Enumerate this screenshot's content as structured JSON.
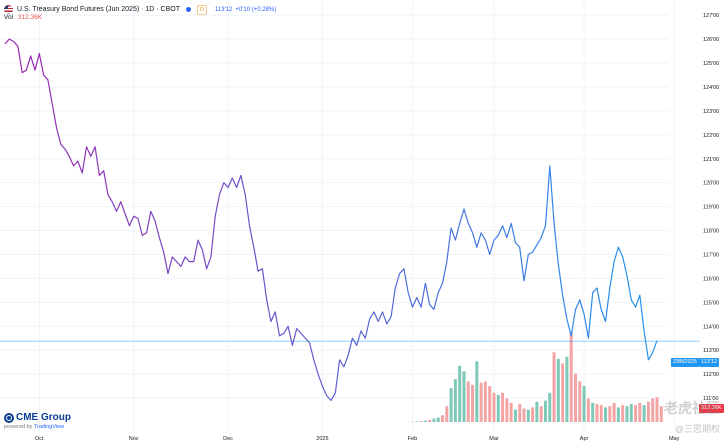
{
  "header": {
    "title": "U.S. Treasury Bond Futures (Jun 2025) · 1D · CBOT",
    "badge": "D",
    "price": "113'12",
    "change": "+0'10 (+0.28%)",
    "dot_color": "#2962ff",
    "badge_color": "#f7931a"
  },
  "volume_indicator": {
    "label": "Vol",
    "value": "312.36K"
  },
  "price_tags": {
    "symbol": "ZBM2025",
    "price": "113'12"
  },
  "volume_tag": "312.36K",
  "logo": {
    "name": "CME Group",
    "powered_prefix": "powered by",
    "powered_brand": "TradingView"
  },
  "watermark": {
    "line1": "老虎社区",
    "line2": "@三思期权"
  },
  "colors": {
    "line_start": "#9c27b0",
    "line_end": "#2196f3",
    "vol_up": "#7ec8b8",
    "vol_down": "#f4a4a4",
    "grid": "#f0f3fa",
    "last_price_line": "#2196f3",
    "axis_text": "#131722"
  },
  "chart_data": {
    "type": "line",
    "title": "U.S. Treasury Bond Futures (Jun 2025) · 1D · CBOT",
    "y_axis_unit": "price in points and 32nds",
    "y_tick_labels": [
      "111'00",
      "112'00",
      "113'00",
      "114'00",
      "115'00",
      "116'00",
      "117'00",
      "118'00",
      "119'00",
      "120'00",
      "121'00",
      "122'00",
      "123'00",
      "124'00",
      "125'00",
      "126'00",
      "127'00"
    ],
    "ylim": [
      110.5,
      127.3
    ],
    "x_tick_labels": [
      "Oct",
      "Nov",
      "Dec",
      "2025",
      "Feb",
      "Mar",
      "Apr",
      "May"
    ],
    "grid": true,
    "last_price": 113.375,
    "series": [
      {
        "values": [
          125.8,
          126.0,
          125.9,
          125.7,
          124.6,
          124.7,
          125.3,
          124.7,
          125.4,
          124.5,
          124.3,
          123.3,
          122.3,
          121.6,
          121.4,
          121.1,
          120.7,
          120.9,
          120.4,
          121.5,
          121.1,
          121.5,
          120.3,
          120.5,
          119.5,
          119.2,
          118.8,
          119.2,
          118.7,
          118.2,
          118.6,
          118.5,
          117.8,
          117.9,
          118.8,
          118.4,
          117.7,
          117.1,
          116.2,
          116.9,
          116.7,
          116.5,
          116.9,
          116.7,
          116.7,
          117.6,
          117.2,
          116.4,
          116.9,
          118.6,
          119.5,
          120.0,
          119.8,
          120.2,
          119.8,
          120.3,
          119.5,
          118.2,
          117.3,
          116.3,
          116.4,
          115.1,
          114.2,
          114.6,
          113.6,
          113.7,
          114.0,
          113.2,
          113.9,
          113.7,
          113.5,
          113.3,
          112.6,
          112.0,
          111.5,
          111.1,
          110.9,
          111.2,
          112.6,
          112.3,
          112.8,
          113.5,
          113.2,
          113.8,
          113.5,
          114.3,
          114.6,
          114.2,
          114.6,
          114.1,
          114.4,
          115.6,
          116.2,
          116.4,
          115.4,
          114.8,
          115.2,
          114.8,
          115.8,
          114.9,
          114.7,
          115.4,
          115.8,
          116.7,
          118.1,
          117.6,
          118.3,
          118.9,
          118.3,
          117.9,
          117.3,
          117.9,
          117.6,
          117.0,
          117.6,
          117.8,
          118.2,
          117.7,
          118.3,
          117.5,
          117.3,
          115.9,
          117.0,
          117.1,
          117.4,
          117.7,
          118.2,
          120.7,
          118.3,
          116.6,
          115.3,
          114.3,
          113.6,
          114.7,
          115.1,
          114.5,
          113.5,
          115.4,
          115.6,
          114.7,
          114.2,
          115.6,
          116.7,
          117.3,
          116.9,
          116.1,
          115.1,
          114.8,
          115.3,
          113.8,
          112.6,
          112.9,
          113.4
        ]
      }
    ],
    "volume_values": [
      0,
      0,
      0,
      0,
      0,
      0,
      0,
      0,
      0,
      0,
      0,
      0,
      0,
      0,
      0,
      0,
      0,
      0,
      0,
      0,
      0,
      0,
      0,
      0,
      0,
      0,
      0,
      0,
      0,
      0,
      0,
      0,
      0,
      0,
      0,
      0,
      0,
      0,
      0,
      0,
      0,
      0,
      0,
      0,
      0,
      0,
      0,
      0,
      0,
      0,
      0,
      0,
      0,
      0,
      0,
      0,
      0,
      0,
      0,
      0,
      0,
      0,
      0,
      0,
      0,
      0,
      0,
      0,
      0,
      0,
      0,
      0,
      0,
      0,
      0,
      0,
      0,
      0,
      0,
      0,
      0,
      0,
      0,
      0,
      0,
      0,
      0,
      0,
      0,
      0,
      0,
      0,
      0,
      0,
      1,
      3,
      5,
      8,
      12,
      20,
      30,
      40,
      60,
      140,
      300,
      380,
      500,
      450,
      360,
      330,
      540,
      350,
      360,
      320,
      260,
      240,
      260,
      210,
      170,
      110,
      160,
      120,
      110,
      130,
      180,
      140,
      190,
      260,
      620,
      560,
      520,
      580,
      800,
      430,
      360,
      320,
      210,
      170,
      160,
      150,
      130,
      140,
      170,
      130,
      150,
      140,
      160,
      150,
      170,
      150,
      180,
      210,
      220,
      140
    ],
    "volume_direction": [
      0,
      0,
      0,
      0,
      0,
      0,
      0,
      0,
      0,
      0,
      0,
      0,
      0,
      0,
      0,
      0,
      0,
      0,
      0,
      0,
      0,
      0,
      0,
      0,
      0,
      0,
      0,
      0,
      0,
      0,
      0,
      0,
      0,
      0,
      0,
      0,
      0,
      0,
      0,
      0,
      0,
      0,
      0,
      0,
      0,
      0,
      0,
      0,
      0,
      0,
      0,
      0,
      0,
      0,
      0,
      0,
      0,
      0,
      0,
      0,
      0,
      0,
      0,
      0,
      0,
      0,
      0,
      0,
      0,
      0,
      0,
      0,
      0,
      0,
      0,
      0,
      0,
      0,
      0,
      0,
      0,
      0,
      0,
      0,
      0,
      0,
      0,
      0,
      0,
      0,
      0,
      0,
      0,
      0,
      1,
      0,
      1,
      0,
      1,
      0,
      1,
      1,
      0,
      0,
      1,
      1,
      1,
      1,
      0,
      0,
      1,
      0,
      0,
      0,
      0,
      1,
      0,
      0,
      0,
      1,
      0,
      0,
      1,
      0,
      1,
      0,
      1,
      1,
      0,
      1,
      0,
      1,
      0,
      0,
      0,
      1,
      0,
      1,
      0,
      0,
      1,
      0,
      0,
      1,
      0,
      1,
      1,
      0,
      0,
      1,
      0,
      0,
      0,
      0
    ]
  }
}
